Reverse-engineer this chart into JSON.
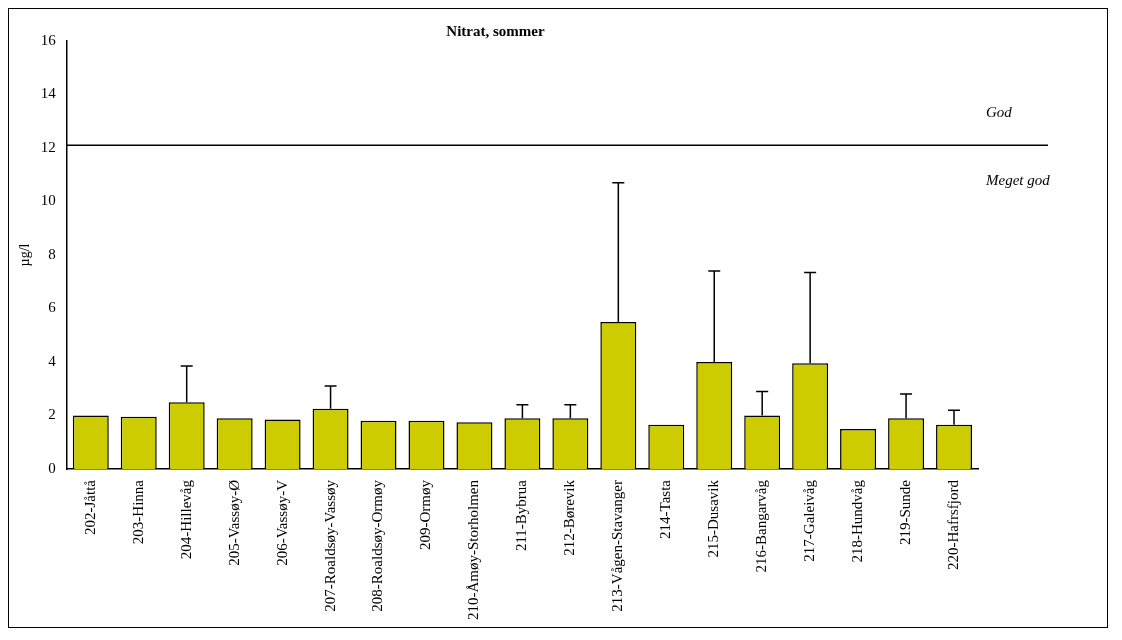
{
  "chart_data": {
    "type": "bar",
    "title": "Nitrat, sommer",
    "ylabel": "µg/l",
    "categories": [
      "202-Jåttå",
      "203-Hinna",
      "204-Hillevåg",
      "205-Vassøy-Ø",
      "206-Vassøy-V",
      "207-Roaldsøy-Vassøy",
      "208-Roaldsøy-Ormøy",
      "209-Ormøy",
      "210-Åmøy-Storholmen",
      "211-Bybrua",
      "212-Børevik",
      "213-Vågen-Stavanger",
      "214-Tasta",
      "215-Dusavik",
      "216-Bangarvåg",
      "217-Galeivåg",
      "218-Hundvåg",
      "219-Sunde",
      "220-Hafrsfjord"
    ],
    "values": [
      2.0,
      1.95,
      2.5,
      1.9,
      1.85,
      2.25,
      1.8,
      1.8,
      1.75,
      1.9,
      1.9,
      5.5,
      1.65,
      4.0,
      2.0,
      3.95,
      1.5,
      1.9,
      1.65
    ],
    "errors": [
      null,
      null,
      [
        2.5,
        3.85
      ],
      null,
      null,
      [
        2.25,
        3.1
      ],
      null,
      null,
      null,
      [
        1.9,
        2.4
      ],
      [
        1.9,
        2.4
      ],
      [
        5.5,
        10.7
      ],
      null,
      [
        4.0,
        7.4
      ],
      [
        2.0,
        2.9
      ],
      [
        3.95,
        7.35
      ],
      null,
      [
        1.9,
        2.8
      ],
      [
        1.65,
        2.2
      ]
    ],
    "color": "#cccc00",
    "ylim": [
      0,
      16
    ],
    "yticks": [
      0,
      2,
      4,
      6,
      8,
      10,
      12,
      14,
      16
    ],
    "grid": false,
    "legend": false,
    "ref_lines": [
      {
        "axis": "y",
        "value": 12.1,
        "color": "#000000"
      }
    ],
    "annotations": [
      "God",
      "Meget god"
    ]
  }
}
